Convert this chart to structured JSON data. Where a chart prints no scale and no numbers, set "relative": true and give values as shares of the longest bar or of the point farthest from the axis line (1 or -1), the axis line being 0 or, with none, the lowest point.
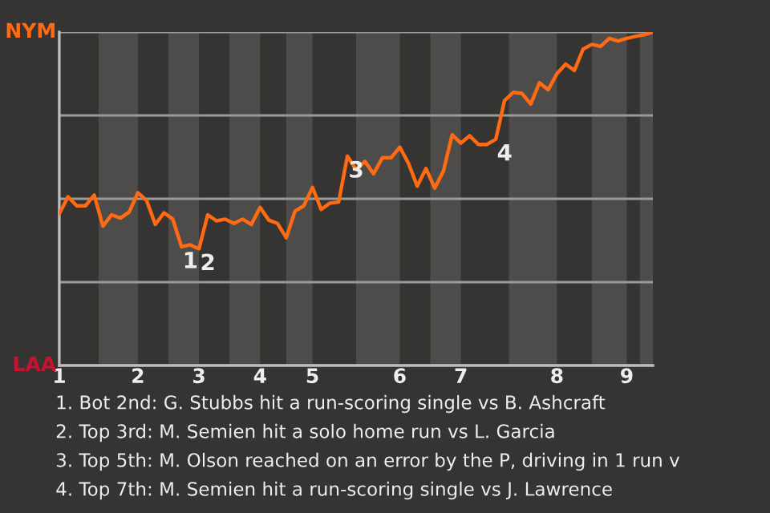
{
  "chart_data": {
    "type": "line",
    "relative": true,
    "categories": [
      "1",
      null,
      null,
      null,
      null,
      null,
      null,
      null,
      null,
      "2",
      null,
      null,
      null,
      null,
      null,
      null,
      "3",
      null,
      null,
      null,
      null,
      null,
      null,
      "4",
      null,
      null,
      null,
      null,
      null,
      "5",
      null,
      null,
      null,
      null,
      null,
      null,
      null,
      null,
      null,
      "6",
      null,
      null,
      null,
      null,
      null,
      null,
      "7",
      null,
      null,
      null,
      null,
      null,
      null,
      null,
      null,
      null,
      null,
      "8",
      null,
      null,
      null,
      null,
      null,
      null,
      null,
      "9",
      null,
      null,
      null
    ],
    "series": [
      {
        "color": "#ff6a13",
        "values": [
          0.455,
          0.506,
          0.479,
          0.479,
          0.511,
          0.418,
          0.452,
          0.442,
          0.46,
          0.518,
          0.495,
          0.423,
          0.458,
          0.439,
          0.356,
          0.362,
          0.35,
          0.452,
          0.434,
          0.439,
          0.426,
          0.439,
          0.423,
          0.474,
          0.436,
          0.426,
          0.383,
          0.463,
          0.479,
          0.534,
          0.468,
          0.487,
          0.49,
          0.628,
          0.587,
          0.612,
          0.575,
          0.623,
          0.623,
          0.655,
          0.606,
          0.538,
          0.591,
          0.532,
          0.583,
          0.692,
          0.667,
          0.689,
          0.663,
          0.663,
          0.679,
          0.795,
          0.819,
          0.816,
          0.784,
          0.848,
          0.827,
          0.875,
          0.904,
          0.885,
          0.949,
          0.963,
          0.957,
          0.981,
          0.973,
          0.981,
          0.987,
          0.992,
          1
        ]
      }
    ],
    "marker": "none",
    "line_style": "solid",
    "grid": "y",
    "annotations": [
      "NYM",
      "LAA",
      {
        "text": "1",
        "y": 0.356
      },
      {
        "text": "2",
        "y": 0.35
      },
      {
        "text": "3",
        "y": 0.628
      },
      {
        "text": "4",
        "y": 0.679
      },
      "1. Bot 2nd: G. Stubbs hit a run-scoring single vs B. Ashcraft",
      "2. Top 3rd: M. Semien hit a solo home run vs L. Garcia",
      "3. Top 5th: M. Olson reached on an error by the P, driving in 1 run v",
      "4. Top 7th: M. Semien hit a run-scoring single vs J. Lawrence"
    ]
  }
}
